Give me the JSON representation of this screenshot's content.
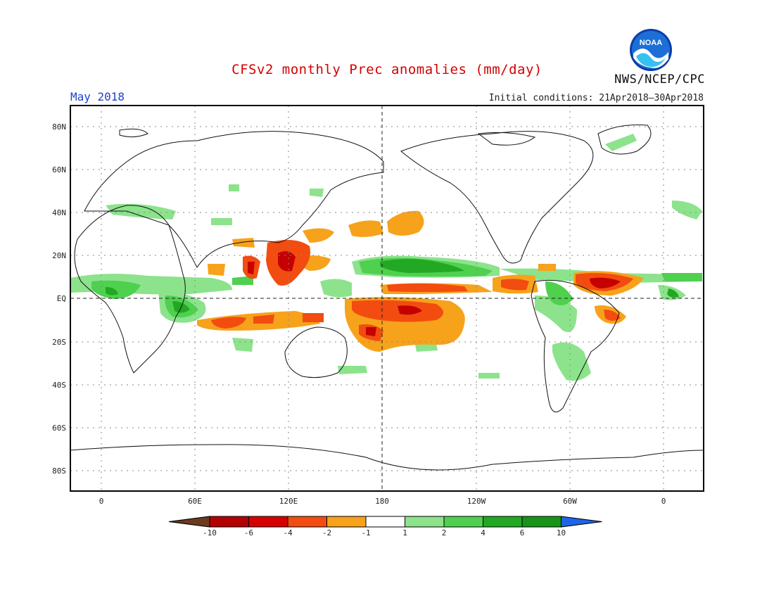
{
  "header": {
    "title": "CFSv2 monthly Prec anomalies (mm/day)",
    "month": "May 2018",
    "initial_conditions": "Initial conditions: 21Apr2018–30Apr2018",
    "agency": "NWS/NCEP/CPC",
    "logo_text": "NOAA"
  },
  "axes": {
    "lat_labels": [
      "80N",
      "60N",
      "40N",
      "20N",
      "EQ",
      "20S",
      "40S",
      "60S",
      "80S"
    ],
    "lon_labels": [
      "0",
      "60E",
      "120E",
      "180",
      "120W",
      "60W",
      "0"
    ]
  },
  "colorbar": {
    "labels": [
      "-10",
      "-6",
      "-4",
      "-2",
      "-1",
      "1",
      "2",
      "4",
      "6",
      "10"
    ],
    "colors": [
      "#6b3a1f",
      "#b30000",
      "#d40000",
      "#f24c10",
      "#f7a21b",
      "#ffffff",
      "#8ce38c",
      "#4fd04f",
      "#22a822",
      "#189418",
      "#1e64e6"
    ]
  },
  "legend_colors": {
    "dry_strong": "#c40000",
    "dry_moderate": "#f24c10",
    "dry_light": "#f7a21b",
    "wet_light": "#8ce38c",
    "wet_moderate": "#4fd04f",
    "wet_strong": "#22a822"
  }
}
